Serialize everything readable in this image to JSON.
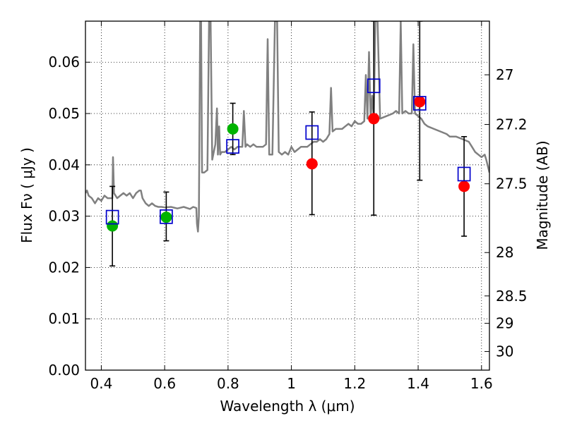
{
  "chart_data": {
    "type": "scatter",
    "title": "",
    "xlabel": "Wavelength  λ (μm)",
    "ylabel": "Flux  Fν  ( μJy )",
    "y2label": "Magnitude (AB)",
    "xlim": [
      0.35,
      1.625
    ],
    "ylim": [
      0.0,
      0.068
    ],
    "grid": true,
    "x_ticks": [
      0.4,
      0.6,
      0.8,
      1.0,
      1.2,
      1.4,
      1.6
    ],
    "x_tick_labels": [
      "0.4",
      "0.6",
      "0.8",
      "1",
      "1.2",
      "1.4",
      "1.6"
    ],
    "y_ticks": [
      0.0,
      0.01,
      0.02,
      0.03,
      0.04,
      0.05,
      0.06
    ],
    "y_tick_labels": [
      "0.00",
      "0.01",
      "0.02",
      "0.03",
      "0.04",
      "0.05",
      "0.06"
    ],
    "mag_ticks": [
      27,
      27.2,
      27.5,
      28,
      28.5,
      29,
      30
    ],
    "mag_tick_labels": [
      "27",
      "27.2",
      "27.5",
      "28",
      "28.5",
      "29",
      "30"
    ],
    "colors": {
      "spectrum": "#808080",
      "green": "#00b300",
      "red": "#ff0000",
      "model": "#0000cc",
      "errorbar": "#000000"
    },
    "series": [
      {
        "name": "spectrum",
        "kind": "line",
        "points": [
          [
            0.35,
            0.0345
          ],
          [
            0.355,
            0.035
          ],
          [
            0.36,
            0.034
          ],
          [
            0.37,
            0.0335
          ],
          [
            0.38,
            0.0325
          ],
          [
            0.39,
            0.0335
          ],
          [
            0.4,
            0.033
          ],
          [
            0.41,
            0.034
          ],
          [
            0.42,
            0.0335
          ],
          [
            0.43,
            0.0335
          ],
          [
            0.435,
            0.0335
          ],
          [
            0.437,
            0.0415
          ],
          [
            0.44,
            0.0345
          ],
          [
            0.45,
            0.0335
          ],
          [
            0.46,
            0.034
          ],
          [
            0.47,
            0.0345
          ],
          [
            0.48,
            0.034
          ],
          [
            0.49,
            0.0345
          ],
          [
            0.5,
            0.0335
          ],
          [
            0.51,
            0.0345
          ],
          [
            0.52,
            0.035
          ],
          [
            0.525,
            0.035
          ],
          [
            0.53,
            0.0335
          ],
          [
            0.54,
            0.0325
          ],
          [
            0.55,
            0.032
          ],
          [
            0.56,
            0.0325
          ],
          [
            0.57,
            0.032
          ],
          [
            0.58,
            0.0318
          ],
          [
            0.59,
            0.0318
          ],
          [
            0.6,
            0.0317
          ],
          [
            0.62,
            0.0318
          ],
          [
            0.64,
            0.0315
          ],
          [
            0.66,
            0.0318
          ],
          [
            0.68,
            0.0314
          ],
          [
            0.69,
            0.0318
          ],
          [
            0.7,
            0.0316
          ],
          [
            0.702,
            0.0285
          ],
          [
            0.705,
            0.027
          ],
          [
            0.708,
            0.03
          ],
          [
            0.712,
            0.068
          ],
          [
            0.715,
            0.068
          ],
          [
            0.718,
            0.0385
          ],
          [
            0.725,
            0.0385
          ],
          [
            0.735,
            0.039
          ],
          [
            0.74,
            0.068
          ],
          [
            0.745,
            0.068
          ],
          [
            0.75,
            0.041
          ],
          [
            0.76,
            0.044
          ],
          [
            0.765,
            0.051
          ],
          [
            0.768,
            0.042
          ],
          [
            0.772,
            0.0475
          ],
          [
            0.775,
            0.042
          ],
          [
            0.78,
            0.0425
          ],
          [
            0.79,
            0.0425
          ],
          [
            0.8,
            0.043
          ],
          [
            0.81,
            0.0435
          ],
          [
            0.82,
            0.043
          ],
          [
            0.83,
            0.0435
          ],
          [
            0.84,
            0.0435
          ],
          [
            0.845,
            0.0435
          ],
          [
            0.85,
            0.0505
          ],
          [
            0.855,
            0.0435
          ],
          [
            0.86,
            0.044
          ],
          [
            0.87,
            0.0435
          ],
          [
            0.88,
            0.044
          ],
          [
            0.89,
            0.0435
          ],
          [
            0.9,
            0.0435
          ],
          [
            0.91,
            0.0435
          ],
          [
            0.92,
            0.044
          ],
          [
            0.925,
            0.0645
          ],
          [
            0.93,
            0.042
          ],
          [
            0.94,
            0.042
          ],
          [
            0.948,
            0.068
          ],
          [
            0.955,
            0.068
          ],
          [
            0.96,
            0.0425
          ],
          [
            0.97,
            0.042
          ],
          [
            0.98,
            0.0425
          ],
          [
            0.99,
            0.042
          ],
          [
            1.0,
            0.0435
          ],
          [
            1.01,
            0.0425
          ],
          [
            1.02,
            0.043
          ],
          [
            1.03,
            0.0435
          ],
          [
            1.04,
            0.0435
          ],
          [
            1.05,
            0.0435
          ],
          [
            1.06,
            0.044
          ],
          [
            1.07,
            0.0445
          ],
          [
            1.08,
            0.0445
          ],
          [
            1.09,
            0.045
          ],
          [
            1.1,
            0.0445
          ],
          [
            1.11,
            0.045
          ],
          [
            1.12,
            0.046
          ],
          [
            1.125,
            0.055
          ],
          [
            1.13,
            0.0465
          ],
          [
            1.14,
            0.047
          ],
          [
            1.15,
            0.047
          ],
          [
            1.16,
            0.047
          ],
          [
            1.17,
            0.0475
          ],
          [
            1.18,
            0.048
          ],
          [
            1.19,
            0.0475
          ],
          [
            1.2,
            0.0485
          ],
          [
            1.21,
            0.048
          ],
          [
            1.22,
            0.048
          ],
          [
            1.23,
            0.0485
          ],
          [
            1.235,
            0.0575
          ],
          [
            1.24,
            0.049
          ],
          [
            1.245,
            0.062
          ],
          [
            1.25,
            0.049
          ],
          [
            1.255,
            0.0535
          ],
          [
            1.26,
            0.049
          ],
          [
            1.265,
            0.068
          ],
          [
            1.272,
            0.068
          ],
          [
            1.28,
            0.049
          ],
          [
            1.3,
            0.0495
          ],
          [
            1.32,
            0.05
          ],
          [
            1.33,
            0.0505
          ],
          [
            1.34,
            0.05
          ],
          [
            1.345,
            0.068
          ],
          [
            1.35,
            0.05
          ],
          [
            1.36,
            0.0505
          ],
          [
            1.37,
            0.05
          ],
          [
            1.38,
            0.05
          ],
          [
            1.385,
            0.0635
          ],
          [
            1.39,
            0.05
          ],
          [
            1.4,
            0.0495
          ],
          [
            1.41,
            0.049
          ],
          [
            1.42,
            0.048
          ],
          [
            1.43,
            0.0475
          ],
          [
            1.45,
            0.047
          ],
          [
            1.47,
            0.0465
          ],
          [
            1.49,
            0.046
          ],
          [
            1.5,
            0.0455
          ],
          [
            1.52,
            0.0455
          ],
          [
            1.54,
            0.045
          ],
          [
            1.56,
            0.0445
          ],
          [
            1.57,
            0.0435
          ],
          [
            1.58,
            0.0425
          ],
          [
            1.59,
            0.042
          ],
          [
            1.6,
            0.0415
          ],
          [
            1.61,
            0.042
          ],
          [
            1.615,
            0.041
          ],
          [
            1.625,
            0.0385
          ]
        ]
      },
      {
        "name": "model-squares",
        "kind": "marker-square",
        "points": [
          [
            0.435,
            0.0298
          ],
          [
            0.605,
            0.0299
          ],
          [
            0.815,
            0.0436
          ],
          [
            1.065,
            0.0463
          ],
          [
            1.26,
            0.0554
          ],
          [
            1.405,
            0.052
          ],
          [
            1.545,
            0.0382
          ]
        ]
      },
      {
        "name": "observed-green",
        "kind": "marker-circle",
        "points": [
          [
            0.435,
            0.0281,
            0.0203,
            0.0358
          ],
          [
            0.605,
            0.0298,
            0.0252,
            0.0347
          ],
          [
            0.815,
            0.047,
            0.042,
            0.052
          ]
        ]
      },
      {
        "name": "observed-red",
        "kind": "marker-circle",
        "points": [
          [
            1.065,
            0.0402,
            0.0303,
            0.0503
          ],
          [
            1.26,
            0.049,
            0.0302,
            0.068
          ],
          [
            1.405,
            0.0523,
            0.037,
            0.068
          ],
          [
            1.545,
            0.0358,
            0.0261,
            0.0455
          ]
        ]
      }
    ]
  }
}
